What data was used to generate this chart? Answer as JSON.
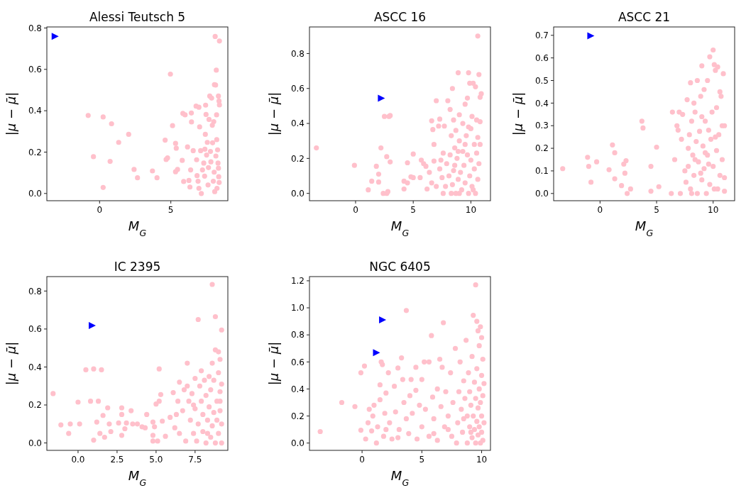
{
  "chart_data": [
    {
      "type": "scatter",
      "title": "Alessi Teutsch 5",
      "xlabel": "M$_{G}$",
      "ylabel": "|μ − μ̄|",
      "xlim": [
        -3.7,
        9.0
      ],
      "ylim": [
        -0.035,
        0.805
      ],
      "xticks": [
        0,
        5
      ],
      "yticks": [
        {
          "value": 0,
          "label": "0.0"
        },
        {
          "value": 0.2,
          "label": "0.2"
        },
        {
          "value": 0.4,
          "label": "0.4"
        },
        {
          "value": 0.6,
          "label": "0.6"
        },
        {
          "value": 0.8,
          "label": "0.8"
        }
      ],
      "grid": false,
      "series": [
        {
          "marker": "circle",
          "color": "#ffc0cb",
          "x": [
            -0.8,
            0.25,
            0.84,
            1.34,
            2.04,
            -0.43,
            0.74,
            0.25,
            2.42,
            2.66,
            3.71,
            4.03,
            4.6,
            4.67,
            4.77,
            4.97,
            5.12,
            5.33,
            5.38,
            5.33,
            5.47,
            5.8,
            5.84,
            6.0,
            5.9,
            6.17,
            6.27,
            6.34,
            6.39,
            6.44,
            6.45,
            6.57,
            6.77,
            6.81,
            6.84,
            6.91,
            6.97,
            7.02,
            7.09,
            6.97,
            7.14,
            7.22,
            7.31,
            7.37,
            7.39,
            7.44,
            7.42,
            7.47,
            7.51,
            7.56,
            7.61,
            7.64,
            7.68,
            7.73,
            7.78,
            7.81,
            7.86,
            7.91,
            7.93,
            7.98,
            8.01,
            8.04,
            8.06,
            8.11,
            8.14,
            8.16,
            8.19,
            8.21,
            8.24,
            8.28,
            8.31,
            8.34,
            8.36,
            8.38,
            8.41,
            8.41,
            8.39,
            8.34,
            8.22,
            8.08
          ],
          "values": [
            0.377,
            0.37,
            0.337,
            0.247,
            0.286,
            0.178,
            0.155,
            0.029,
            0.116,
            0.076,
            0.109,
            0.076,
            0.258,
            0.164,
            0.172,
            0.577,
            0.328,
            0.242,
            0.219,
            0.105,
            0.116,
            0.16,
            0.387,
            0.38,
            0.058,
            0.225,
            0.063,
            0.031,
            0.114,
            0.389,
            0.346,
            0.207,
            0.422,
            0.163,
            0.086,
            0.059,
            0.417,
            0.322,
            0.207,
            0.025,
            0.0,
            0.114,
            0.147,
            0.084,
            0.214,
            0.427,
            0.286,
            0.382,
            0.186,
            0.247,
            0.041,
            0.125,
            0.358,
            0.471,
            0.203,
            0.153,
            0.461,
            0.33,
            0.245,
            0.059,
            0.347,
            0.103,
            0.526,
            0.759,
            0.524,
            0.181,
            0.596,
            0.38,
            0.025,
            0.211,
            0.147,
            0.471,
            0.081,
            0.447,
            0.737,
            0.428,
            0.053,
            0.122,
            0.26,
            0.009
          ]
        },
        {
          "marker": "triangle",
          "color": "#0000ff",
          "x": [
            -3.14
          ],
          "values": [
            0.76
          ]
        }
      ]
    },
    {
      "type": "scatter",
      "title": "ASCC 16",
      "xlabel": "M$_{G}$",
      "ylabel": "|μ − μ̄|",
      "xlim": [
        -4.0,
        11.7
      ],
      "ylim": [
        -0.042,
        0.952
      ],
      "xticks": [
        0,
        5,
        10
      ],
      "yticks": [
        {
          "value": 0,
          "label": "0.0"
        },
        {
          "value": 0.2,
          "label": "0.2"
        },
        {
          "value": 0.4,
          "label": "0.4"
        },
        {
          "value": 0.6,
          "label": "0.6"
        },
        {
          "value": 0.8,
          "label": "0.8"
        }
      ],
      "grid": false,
      "series": [
        {
          "marker": "circle",
          "color": "#ffc0cb",
          "x": [
            -3.4,
            -0.1,
            1.1,
            1.4,
            1.8,
            2.0,
            2.0,
            2.2,
            2.4,
            2.5,
            2.7,
            2.8,
            2.7,
            3.0,
            2.9,
            3.0,
            4.2,
            4.2,
            4.5,
            4.5,
            4.8,
            5.0,
            5.0,
            5.6,
            5.7,
            5.9,
            6.1,
            6.2,
            6.4,
            6.6,
            6.6,
            6.7,
            6.8,
            6.8,
            7.0,
            7.0,
            7.2,
            7.3,
            7.3,
            7.4,
            7.5,
            7.6,
            7.7,
            7.8,
            7.9,
            8.0,
            8.1,
            8.2,
            8.2,
            8.3,
            8.4,
            8.4,
            8.5,
            8.5,
            8.6,
            8.7,
            8.7,
            8.8,
            8.9,
            8.9,
            9.0,
            9.0,
            9.1,
            9.2,
            9.3,
            9.3,
            9.4,
            9.5,
            9.5,
            9.6,
            9.7,
            9.7,
            9.8,
            9.8,
            9.9,
            9.9,
            10.0,
            10.0,
            10.1,
            10.1,
            10.2,
            10.3,
            10.3,
            10.4,
            10.4,
            10.5,
            10.5,
            10.6,
            10.6,
            10.6,
            10.7,
            10.7,
            10.8,
            10.8,
            10.8,
            10.9,
            8.3,
            8.6,
            9.0,
            9.5,
            10.2,
            8.9,
            7.6,
            9.8
          ],
          "values": [
            0.26,
            0.16,
            0.02,
            0.07,
            0.155,
            0.11,
            0.065,
            0.26,
            0.0,
            0.44,
            0.0,
            0.01,
            0.21,
            0.18,
            0.44,
            0.445,
            0.07,
            0.025,
            0.06,
            0.175,
            0.095,
            0.09,
            0.225,
            0.09,
            0.19,
            0.17,
            0.155,
            0.025,
            0.12,
            0.06,
            0.415,
            0.365,
            0.28,
            0.185,
            0.04,
            0.53,
            0.385,
            0.425,
            0.14,
            0.19,
            0.09,
            0.0,
            0.385,
            0.04,
            0.17,
            0.53,
            0.1,
            0.48,
            0.22,
            0.33,
            0.6,
            0.05,
            0.42,
            0.13,
            0.26,
            0.0,
            0.36,
            0.2,
            0.69,
            0.08,
            0.45,
            0.3,
            0.12,
            0.02,
            0.24,
            0.4,
            0.16,
            0.51,
            0.06,
            0.33,
            0.545,
            0.22,
            0.69,
            0.0,
            0.63,
            0.1,
            0.37,
            0.19,
            0.44,
            0.04,
            0.63,
            0.28,
            0.14,
            0.61,
            0.0,
            0.42,
            0.23,
            0.9,
            0.32,
            0.08,
            0.68,
            0.17,
            0.55,
            0.41,
            0.28,
            0.57,
            0.0,
            0.16,
            0.0,
            0.28,
            0.02,
            0.24,
            0.23,
            0.38
          ]
        },
        {
          "marker": "triangle",
          "color": "#0000ff",
          "x": [
            2.21
          ],
          "values": [
            0.544
          ]
        }
      ]
    },
    {
      "type": "scatter",
      "title": "ASCC 21",
      "xlabel": "M$_{G}$",
      "ylabel": "|μ − μ̄|",
      "xlim": [
        -4.1,
        11.9
      ],
      "ylim": [
        -0.032,
        0.737
      ],
      "xticks": [
        0,
        5,
        10
      ],
      "yticks": [
        {
          "value": 0,
          "label": "0.0"
        },
        {
          "value": 0.1,
          "label": "0.1"
        },
        {
          "value": 0.2,
          "label": "0.2"
        },
        {
          "value": 0.3,
          "label": "0.3"
        },
        {
          "value": 0.4,
          "label": "0.4"
        },
        {
          "value": 0.5,
          "label": "0.5"
        },
        {
          "value": 0.6,
          "label": "0.6"
        },
        {
          "value": 0.7,
          "label": "0.7"
        }
      ],
      "grid": false,
      "series": [
        {
          "marker": "circle",
          "color": "#ffc0cb",
          "x": [
            -3.3,
            -1.1,
            -1.0,
            -0.8,
            -0.3,
            0.8,
            1.1,
            1.3,
            1.3,
            1.9,
            2.1,
            2.2,
            2.3,
            2.4,
            2.7,
            3.7,
            3.8,
            4.5,
            4.5,
            5.0,
            5.2,
            6.3,
            6.4,
            6.6,
            6.8,
            6.9,
            7.0,
            7.1,
            7.2,
            7.3,
            7.5,
            7.6,
            7.7,
            7.8,
            7.8,
            8.0,
            8.0,
            8.1,
            8.2,
            8.3,
            8.3,
            8.4,
            8.5,
            8.6,
            8.6,
            8.7,
            8.8,
            8.9,
            9.0,
            9.0,
            9.1,
            9.2,
            9.2,
            9.3,
            9.4,
            9.5,
            9.5,
            9.6,
            9.7,
            9.7,
            9.8,
            9.9,
            10.0,
            10.0,
            10.1,
            10.1,
            10.2,
            10.3,
            10.3,
            10.4,
            10.5,
            10.6,
            10.6,
            10.7,
            10.8,
            10.8,
            10.9,
            11.0,
            11.0,
            11.0,
            8.4,
            8.9,
            9.3,
            7.9,
            9.6,
            10.4,
            8.1,
            9.0,
            10.2
          ],
          "values": [
            0.11,
            0.16,
            0.12,
            0.05,
            0.14,
            0.105,
            0.215,
            0.18,
            0.065,
            0.035,
            0.13,
            0.09,
            0.145,
            0.0,
            0.02,
            0.32,
            0.29,
            0.12,
            0.01,
            0.205,
            0.03,
            0.0,
            0.36,
            0.15,
            0.3,
            0.28,
            0.36,
            0.0,
            0.24,
            0.35,
            0.1,
            0.05,
            0.415,
            0.2,
            0.12,
            0.49,
            0.02,
            0.32,
            0.17,
            0.4,
            0.08,
            0.36,
            0.23,
            0.5,
            0.0,
            0.14,
            0.275,
            0.43,
            0.565,
            0.06,
            0.21,
            0.46,
            0.11,
            0.32,
            0.0,
            0.5,
            0.17,
            0.28,
            0.605,
            0.04,
            0.24,
            0.36,
            0.635,
            0.12,
            0.57,
            0.02,
            0.545,
            0.38,
            0.19,
            0.56,
            0.26,
            0.45,
            0.08,
            0.43,
            0.15,
            0.3,
            0.53,
            0.3,
            0.01,
            0.07,
            0.15,
            0.09,
            0.18,
            0.26,
            0.13,
            0.02,
            0.0,
            0.34,
            0.25
          ]
        },
        {
          "marker": "triangle",
          "color": "#0000ff",
          "x": [
            -0.84
          ],
          "values": [
            0.698
          ]
        }
      ]
    },
    {
      "type": "scatter",
      "title": "IC 2395",
      "xlabel": "M$_{G}$",
      "ylabel": "|μ − μ̄|",
      "xlim": [
        -2.0,
        9.6
      ],
      "ylim": [
        -0.039,
        0.876
      ],
      "xticks": [
        {
          "value": 0,
          "label": "0.0"
        },
        2.5,
        {
          "value": 5,
          "label": "5.0"
        },
        7.5
      ],
      "yticks": [
        {
          "value": 0,
          "label": "0.0"
        },
        {
          "value": 0.2,
          "label": "0.2"
        },
        {
          "value": 0.4,
          "label": "0.4"
        },
        {
          "value": 0.6,
          "label": "0.6"
        },
        {
          "value": 0.8,
          "label": "0.8"
        }
      ],
      "grid": false,
      "series": [
        {
          "marker": "circle",
          "color": "#ffc0cb",
          "x": [
            -1.6,
            -1.1,
            -0.6,
            -0.5,
            0.0,
            0.1,
            0.5,
            0.8,
            1.0,
            1.0,
            1.2,
            1.3,
            1.5,
            1.4,
            1.6,
            1.7,
            1.9,
            2.0,
            2.1,
            2.6,
            2.8,
            2.8,
            2.8,
            3.0,
            3.1,
            3.4,
            3.5,
            3.8,
            4.1,
            4.3,
            4.4,
            4.8,
            4.8,
            4.8,
            4.9,
            5.0,
            5.1,
            5.2,
            5.2,
            5.3,
            5.4,
            5.6,
            5.9,
            6.1,
            6.2,
            6.3,
            6.4,
            6.5,
            6.5,
            6.7,
            6.8,
            6.9,
            7.0,
            7.0,
            7.1,
            7.2,
            7.3,
            7.4,
            7.5,
            7.5,
            7.6,
            7.7,
            7.7,
            7.8,
            7.9,
            8.0,
            8.0,
            8.1,
            8.2,
            8.2,
            8.3,
            8.4,
            8.4,
            8.5,
            8.5,
            8.6,
            8.6,
            8.6,
            8.7,
            8.7,
            8.8,
            8.8,
            8.8,
            8.9,
            8.9,
            9.0,
            9.0,
            9.0,
            9.1,
            9.1,
            9.1,
            9.2,
            9.2,
            9.2,
            9.2,
            9.1,
            8.3,
            7.9,
            7.4
          ],
          "values": [
            0.26,
            0.095,
            0.05,
            0.1,
            0.215,
            0.1,
            0.385,
            0.22,
            0.39,
            0.015,
            0.11,
            0.22,
            0.385,
            0.05,
            0.145,
            0.03,
            0.185,
            0.1,
            0.06,
            0.105,
            0.185,
            0.04,
            0.15,
            0.075,
            0.105,
            0.17,
            0.1,
            0.1,
            0.085,
            0.08,
            0.15,
            0.04,
            0.01,
            0.11,
            0.085,
            0.205,
            0.01,
            0.39,
            0.22,
            0.255,
            0.115,
            0.035,
            0.135,
            0.265,
            0.08,
            0.15,
            0.22,
            0.32,
            0.05,
            0.17,
            0.28,
            0.01,
            0.3,
            0.42,
            0.22,
            0.12,
            0.26,
            0.05,
            0.34,
            0.18,
            0.01,
            0.65,
            0.1,
            0.3,
            0.22,
            0.06,
            0.15,
            0.33,
            0.0,
            0.25,
            0.12,
            0.35,
            0.19,
            0.03,
            0.28,
            0.835,
            0.42,
            0.09,
            0.16,
            0.33,
            0.49,
            0.665,
            0.0,
            0.22,
            0.12,
            0.48,
            0.37,
            0.05,
            0.27,
            0.17,
            0.44,
            0.595,
            0.31,
            0.1,
            0.0,
            0.22,
            0.05,
            0.38,
            0.2
          ]
        },
        {
          "marker": "triangle",
          "color": "#0000ff",
          "x": [
            0.89
          ],
          "values": [
            0.618
          ]
        }
      ]
    },
    {
      "type": "scatter",
      "title": "NGC 6405",
      "xlabel": "M$_{G}$",
      "ylabel": "|μ − μ̄|",
      "xlim": [
        -4.4,
        10.74
      ],
      "ylim": [
        -0.054,
        1.231
      ],
      "xticks": [
        0,
        5,
        10
      ],
      "yticks": [
        {
          "value": 0,
          "label": "0.0"
        },
        {
          "value": 0.2,
          "label": "0.2"
        },
        {
          "value": 0.4,
          "label": "0.4"
        },
        {
          "value": 0.6,
          "label": "0.6"
        },
        {
          "value": 0.8,
          "label": "0.8"
        },
        {
          "value": 1,
          "label": "1.0"
        },
        {
          "value": 1.2,
          "label": "1.2"
        }
      ],
      "grid": false,
      "series": [
        {
          "marker": "circle",
          "color": "#ffc0cb",
          "x": [
            -3.5,
            -1.7,
            -0.6,
            -0.1,
            -0.1,
            0.2,
            0.3,
            0.5,
            0.6,
            0.8,
            0.9,
            1.0,
            1.2,
            1.3,
            1.5,
            1.5,
            1.6,
            1.7,
            1.8,
            1.9,
            2.0,
            2.2,
            2.3,
            2.5,
            2.7,
            2.8,
            3.0,
            3.1,
            3.3,
            3.4,
            3.5,
            3.7,
            3.7,
            3.9,
            4.0,
            4.1,
            4.2,
            4.5,
            4.5,
            4.6,
            4.8,
            5.0,
            5.0,
            5.2,
            5.3,
            5.6,
            5.6,
            5.8,
            5.9,
            6.0,
            6.3,
            6.3,
            6.5,
            6.6,
            6.7,
            6.8,
            6.9,
            7.0,
            7.2,
            7.4,
            7.5,
            7.6,
            7.8,
            7.9,
            8.0,
            8.1,
            8.2,
            8.3,
            8.4,
            8.5,
            8.6,
            8.7,
            8.8,
            8.8,
            8.9,
            9.0,
            9.0,
            9.1,
            9.2,
            9.2,
            9.3,
            9.3,
            9.4,
            9.4,
            9.5,
            9.5,
            9.5,
            9.6,
            9.6,
            9.6,
            9.7,
            9.7,
            9.7,
            9.8,
            9.8,
            9.8,
            9.9,
            9.9,
            9.9,
            10.0,
            10.0,
            10.0,
            10.0,
            10.1,
            10.1,
            10.1,
            10.2,
            10.2,
            8.5,
            9.1,
            7.2,
            6.0,
            3.0,
            2.0
          ],
          "values": [
            0.085,
            0.3,
            0.27,
            0.52,
            0.095,
            0.57,
            0.03,
            0.15,
            0.25,
            0.09,
            0.2,
            0.28,
            0.0,
            0.12,
            0.43,
            0.32,
            0.6,
            0.58,
            0.05,
            0.22,
            0.37,
            0.52,
            0.15,
            0.03,
            0.42,
            0.23,
            0.555,
            0.1,
            0.63,
            0.47,
            0.3,
            0.98,
            0.18,
            0.07,
            0.35,
            0.47,
            0.22,
            0.39,
            0.56,
            0.03,
            0.28,
            0.47,
            0.12,
            0.6,
            0.25,
            0.6,
            0.05,
            0.795,
            0.34,
            0.18,
            0.4,
            0.02,
            0.62,
            0.27,
            0.56,
            0.89,
            0.12,
            0.38,
            0.2,
            0.52,
            0.05,
            0.3,
            0.7,
            0.0,
            0.15,
            0.38,
            0.6,
            0.25,
            0.08,
            0.46,
            0.33,
            0.76,
            0.0,
            0.2,
            0.52,
            0.12,
            0.38,
            0.28,
            0.64,
            0.04,
            0.945,
            0.2,
            0.45,
            0.1,
            1.17,
            0.33,
            0.0,
            0.9,
            0.55,
            0.16,
            0.83,
            0.26,
            0.06,
            0.72,
            0.4,
            0.12,
            0.86,
            0.3,
            0.0,
            0.78,
            0.5,
            0.2,
            0.08,
            0.62,
            0.35,
            0.02,
            0.44,
            0.15,
            0.18,
            0.08,
            0.1,
            0.07,
            0.04,
            0.1
          ]
        },
        {
          "marker": "triangle",
          "color": "#0000ff",
          "x": [
            1.69,
            1.18
          ],
          "values": [
            0.911,
            0.669
          ]
        }
      ]
    }
  ]
}
